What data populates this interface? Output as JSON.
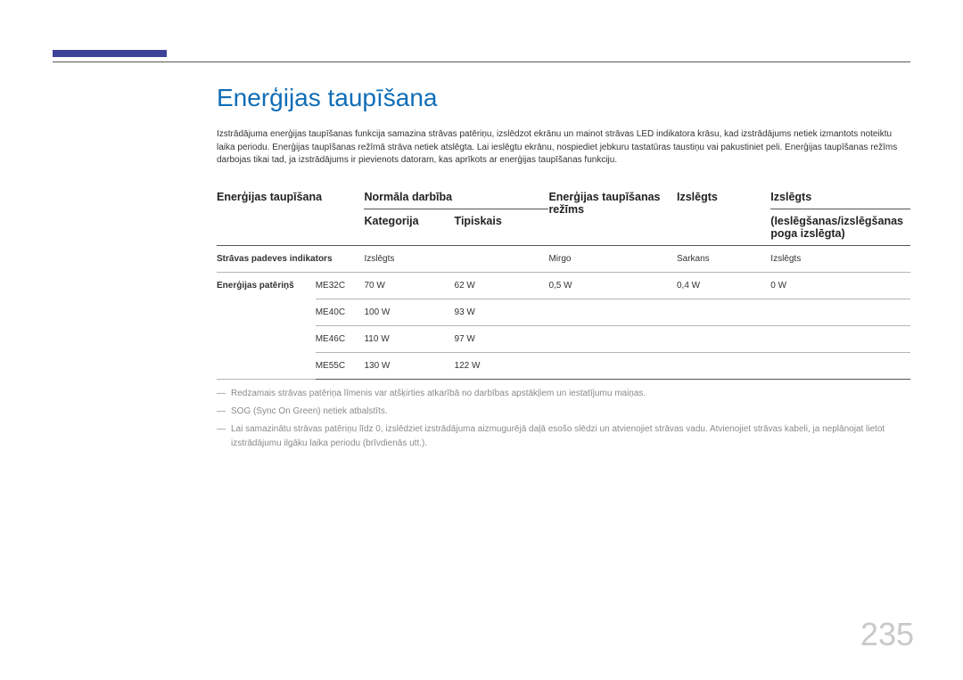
{
  "title": "Enerģijas taupīšana",
  "intro": "Izstrādājuma enerģijas taupīšanas funkcija samazina strāvas patēriņu, izslēdzot ekrānu un mainot strāvas LED indikatora krāsu, kad izstrādājums netiek izmantots noteiktu laika periodu. Enerģijas taupīšanas režīmā strāva netiek atslēgta. Lai ieslēgtu ekrānu, nospiediet jebkuru tastatūras taustiņu vai pakustiniet peli. Enerģijas taupīšanas režīms darbojas tikai tad, ja izstrādājums ir pievienots datoram, kas aprīkots ar enerģijas taupīšanas funkciju.",
  "headers": {
    "col1": "Enerģijas taupīšana",
    "col_normal": "Normāla darbība",
    "col_kat": "Kategorija",
    "col_tip": "Tipiskais",
    "col_mode": "Enerģijas taupīšanas režīms",
    "col_off1": "Izslēgts",
    "col_off2": "Izslēgts",
    "col_off2_sub": "(Ieslēgšanas/izslēgšanas poga izslēgta)"
  },
  "row1": {
    "label": "Strāvas padeves indikators",
    "c3": "",
    "c3b": "Izslēgts",
    "c5": "Mirgo",
    "c6": "Sarkans",
    "c7": "Izslēgts"
  },
  "row2": {
    "label": "Enerģijas patēriņš",
    "models": [
      {
        "m": "ME32C",
        "kat": "70 W",
        "tip": "62 W",
        "mode": "0,5 W",
        "off": "0,4 W",
        "off2": "0 W"
      },
      {
        "m": "ME40C",
        "kat": "100 W",
        "tip": "93 W",
        "mode": "",
        "off": "",
        "off2": ""
      },
      {
        "m": "ME46C",
        "kat": "110 W",
        "tip": "97 W",
        "mode": "",
        "off": "",
        "off2": ""
      },
      {
        "m": "ME55C",
        "kat": "130 W",
        "tip": "122 W",
        "mode": "",
        "off": "",
        "off2": ""
      }
    ]
  },
  "notes": [
    "Redzamais strāvas patēriņa līmenis var atšķirties atkarībā no darbības apstākļiem un iestatījumu maiņas.",
    "SOG (Sync On Green) netiek atbalstīts.",
    "Lai samazinātu strāvas patēriņu līdz 0, izslēdziet izstrādājuma aizmugurējā daļā esošo slēdzi un atvienojiet strāvas vadu. Atvienojiet strāvas kabeli, ja neplānojat lietot izstrādājumu ilgāku laika periodu (brīvdienās utt.)."
  ],
  "pageNumber": "235"
}
